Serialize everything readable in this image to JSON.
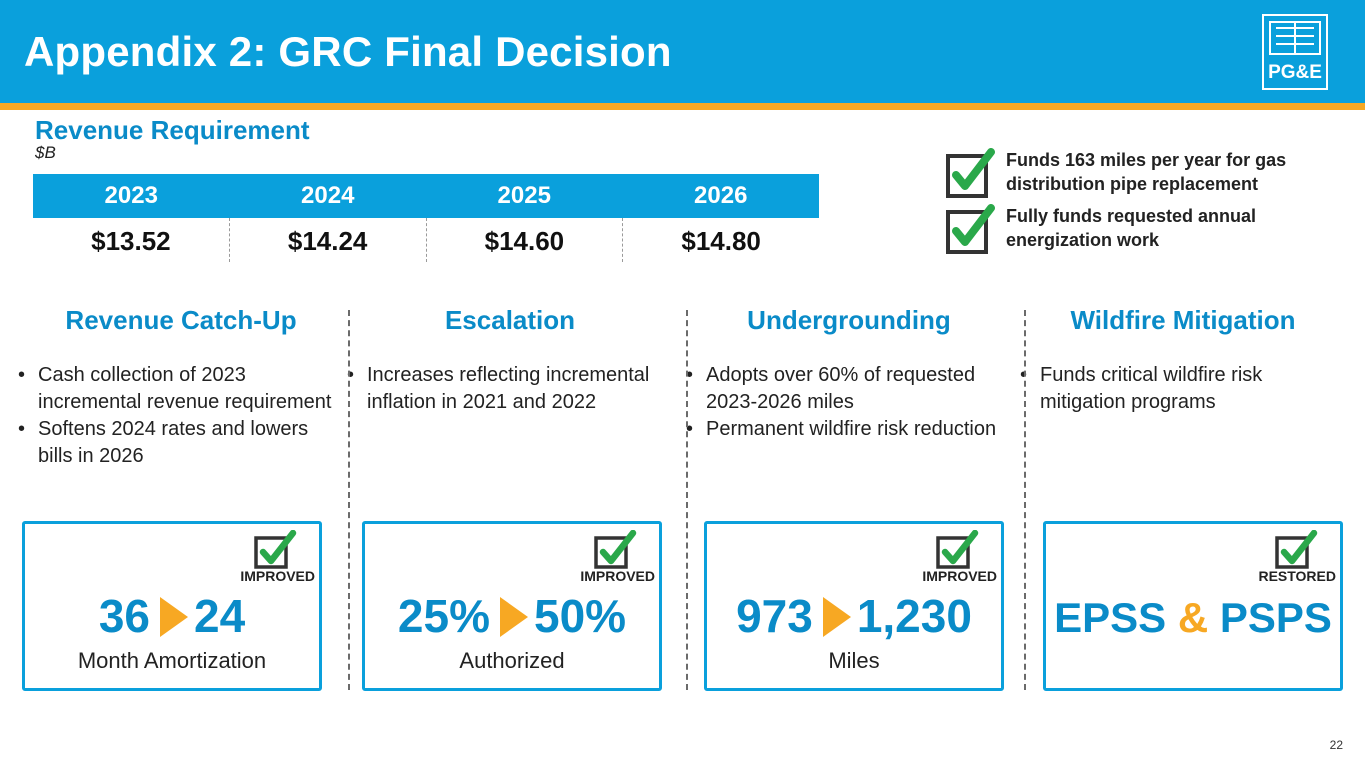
{
  "header": {
    "title": "Appendix 2: GRC Final Decision",
    "logo_text": "PG&E",
    "colors": {
      "blue": "#0aa0dc",
      "orange": "#f7a823",
      "heading_blue": "#0a8bc8",
      "check_green": "#2aa84a"
    }
  },
  "revenue": {
    "title": "Revenue Requirement",
    "unit": "$B",
    "years": [
      "2023",
      "2024",
      "2025",
      "2026"
    ],
    "values": [
      "$13.52",
      "$14.24",
      "$14.60",
      "$14.80"
    ]
  },
  "callouts": [
    {
      "text": "Funds 163 miles per year for gas distribution pipe replacement",
      "icon": "checkbox-check-icon"
    },
    {
      "text": "Fully funds requested annual energization work",
      "icon": "checkbox-check-icon"
    }
  ],
  "columns": [
    {
      "heading": "Revenue Catch-Up",
      "bullets": [
        "Cash collection of 2023 incremental revenue requirement",
        "Softens 2024 rates and lowers bills in 2026"
      ],
      "box": {
        "status": "IMPROVED",
        "from": "36",
        "to": "24",
        "caption": "Month Amortization"
      }
    },
    {
      "heading": "Escalation",
      "bullets": [
        "Increases reflecting incremental inflation in 2021 and 2022"
      ],
      "box": {
        "status": "IMPROVED",
        "from": "25%",
        "to": "50%",
        "caption": "Authorized"
      }
    },
    {
      "heading": "Undergrounding",
      "bullets": [
        "Adopts over 60% of requested 2023-2026 miles",
        "Permanent wildfire risk reduction"
      ],
      "box": {
        "status": "IMPROVED",
        "from": "973",
        "to": "1,230",
        "caption": "Miles"
      }
    },
    {
      "heading": "Wildfire Mitigation",
      "bullets": [
        "Funds critical wildfire risk mitigation programs"
      ],
      "box": {
        "status": "RESTORED",
        "left": "EPSS",
        "amp": "&",
        "right": "PSPS",
        "caption": ""
      }
    }
  ],
  "page_number": "22"
}
